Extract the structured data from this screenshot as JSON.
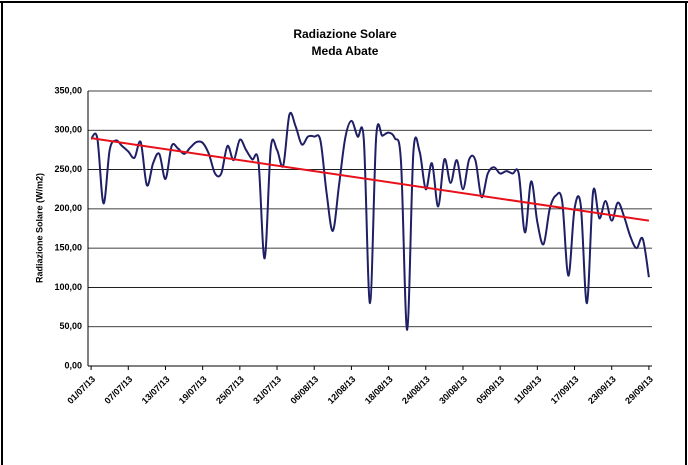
{
  "chart_data": {
    "type": "line",
    "title": "Radiazione Solare",
    "subtitle": "Meda Abate",
    "y_label": "Radiazione Solare (W/m2)",
    "categories": [
      "01/07/13",
      null,
      null,
      null,
      null,
      null,
      "07/07/13",
      null,
      null,
      null,
      null,
      null,
      "13/07/13",
      null,
      null,
      null,
      null,
      null,
      "19/07/13",
      null,
      null,
      null,
      null,
      null,
      "25/07/13",
      null,
      null,
      null,
      null,
      null,
      "31/07/13",
      null,
      null,
      null,
      null,
      null,
      "06/08/13",
      null,
      null,
      null,
      null,
      null,
      "12/08/13",
      null,
      null,
      null,
      null,
      null,
      "18/08/13",
      null,
      null,
      null,
      null,
      null,
      "24/08/13",
      null,
      null,
      null,
      null,
      null,
      "30/08/13",
      null,
      null,
      null,
      null,
      null,
      "05/09/13",
      null,
      null,
      null,
      null,
      null,
      "11/09/13",
      null,
      null,
      null,
      null,
      null,
      "17/09/13",
      null,
      null,
      null,
      null,
      null,
      "23/09/13",
      null,
      null,
      null,
      null,
      null,
      "29/09/13"
    ],
    "values": [
      289,
      290,
      207,
      275,
      287,
      280,
      273,
      265,
      285,
      230,
      258,
      270,
      238,
      280,
      277,
      270,
      278,
      285,
      284,
      270,
      245,
      245,
      280,
      262,
      288,
      275,
      263,
      260,
      137,
      278,
      275,
      255,
      320,
      305,
      282,
      292,
      292,
      287,
      220,
      172,
      230,
      290,
      312,
      292,
      288,
      80,
      292,
      293,
      297,
      290,
      260,
      46,
      272,
      273,
      225,
      258,
      203,
      263,
      233,
      262,
      225,
      263,
      262,
      215,
      245,
      253,
      245,
      248,
      245,
      245,
      170,
      235,
      183,
      155,
      200,
      217,
      210,
      115,
      200,
      205,
      80,
      222,
      188,
      210,
      185,
      208,
      190,
      165,
      150,
      162,
      113
    ],
    "color": "#1f1f66",
    "trendline": {
      "color": "#e8101a",
      "values": [
        290,
        185
      ]
    },
    "ylim": [
      0,
      350
    ],
    "yticks": [
      {
        "value": 0,
        "label": "0,00"
      },
      {
        "value": 50,
        "label": "50,00"
      },
      {
        "value": 100,
        "label": "100,00"
      },
      {
        "value": 150,
        "label": "150,00"
      },
      {
        "value": 200,
        "label": "200,00"
      },
      {
        "value": 250,
        "label": "250,00"
      },
      {
        "value": 300,
        "label": "300,00"
      },
      {
        "value": 350,
        "label": "350,00"
      }
    ],
    "grid": true
  }
}
